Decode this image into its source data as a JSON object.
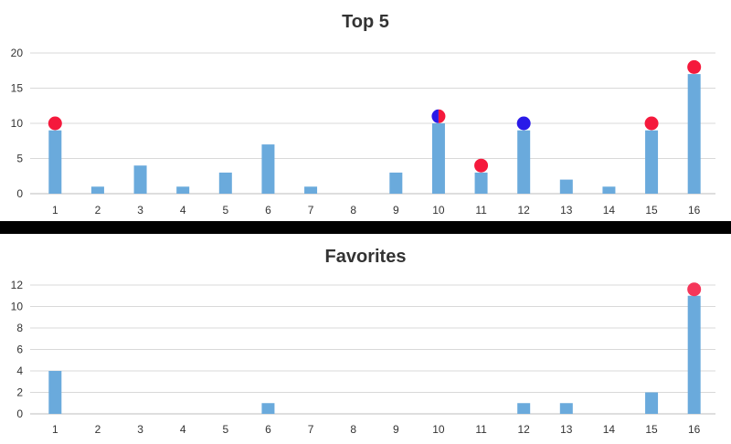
{
  "chart_data": [
    {
      "type": "bar",
      "title": "Top 5",
      "categories": [
        "1",
        "2",
        "3",
        "4",
        "5",
        "6",
        "7",
        "8",
        "9",
        "10",
        "11",
        "12",
        "13",
        "14",
        "15",
        "16"
      ],
      "values": [
        9,
        1,
        4,
        1,
        3,
        7,
        1,
        0,
        3,
        10,
        3,
        9,
        2,
        1,
        9,
        17
      ],
      "ylim": [
        0,
        20
      ],
      "yticks": [
        0,
        5,
        10,
        15,
        20
      ],
      "grid": true,
      "bar_color": "#6aaadc",
      "markers": [
        {
          "category": "1",
          "value": 10,
          "colors": [
            "#f5193c"
          ]
        },
        {
          "category": "10",
          "value": 11,
          "colors": [
            "#2a1ae8",
            "#f5193c"
          ]
        },
        {
          "category": "11",
          "value": 4,
          "colors": [
            "#f5193c"
          ]
        },
        {
          "category": "12",
          "value": 10,
          "colors": [
            "#2a1ae8"
          ]
        },
        {
          "category": "15",
          "value": 10,
          "colors": [
            "#f5193c"
          ]
        },
        {
          "category": "16",
          "value": 18,
          "colors": [
            "#f5193c"
          ]
        }
      ]
    },
    {
      "type": "bar",
      "title": "Favorites",
      "categories": [
        "1",
        "2",
        "3",
        "4",
        "5",
        "6",
        "7",
        "8",
        "9",
        "10",
        "11",
        "12",
        "13",
        "14",
        "15",
        "16"
      ],
      "values": [
        4,
        0,
        0,
        0,
        0,
        1,
        0,
        0,
        0,
        0,
        0,
        1,
        1,
        0,
        2,
        11
      ],
      "ylim": [
        0,
        12
      ],
      "yticks": [
        0,
        2,
        4,
        6,
        8,
        10,
        12
      ],
      "grid": true,
      "bar_color": "#6aaadc",
      "markers": [
        {
          "category": "16",
          "value": 11.6,
          "colors": [
            "#f5365a"
          ]
        }
      ]
    }
  ]
}
